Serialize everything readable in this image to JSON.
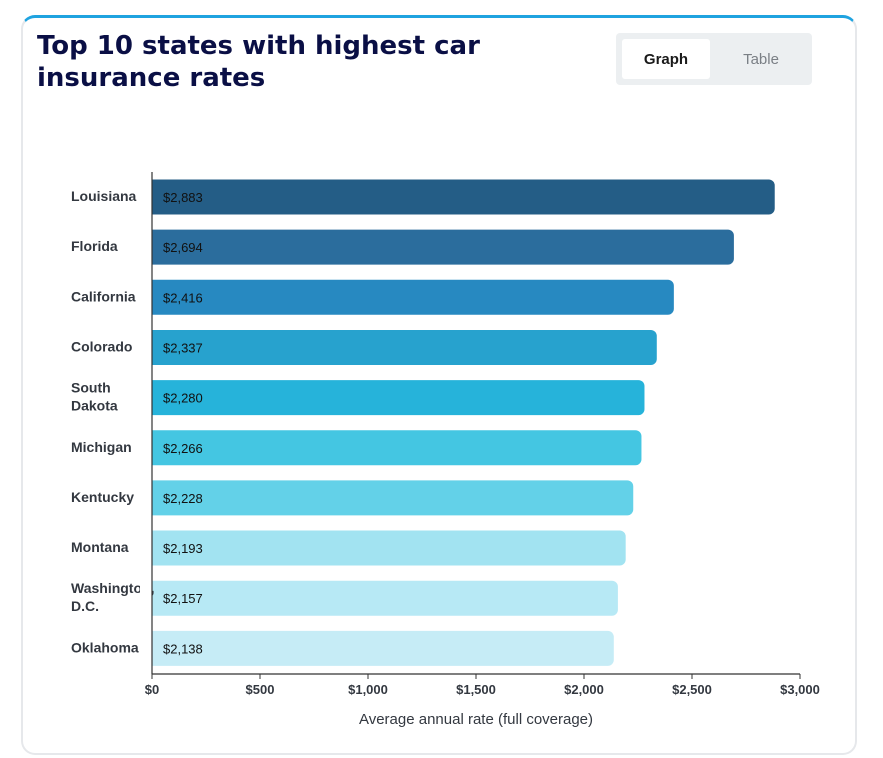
{
  "header": {
    "title": "Top 10 states with highest car insurance rates"
  },
  "view_toggle": {
    "graph_label": "Graph",
    "table_label": "Table",
    "selected": "Graph"
  },
  "colors": {
    "accent_border": "#1fa3e0",
    "title": "#0a0f45"
  },
  "chart_data": {
    "type": "bar",
    "orientation": "horizontal",
    "title": "Top 10 states with highest car insurance rates",
    "categories": [
      [
        "Louisiana"
      ],
      [
        "Florida"
      ],
      [
        "California"
      ],
      [
        "Colorado"
      ],
      [
        "South",
        "Dakota"
      ],
      [
        "Michigan"
      ],
      [
        "Kentucky"
      ],
      [
        "Montana"
      ],
      [
        "Washington,",
        "D.C."
      ],
      [
        "Oklahoma"
      ]
    ],
    "values": [
      2883,
      2694,
      2416,
      2337,
      2280,
      2266,
      2228,
      2193,
      2157,
      2138
    ],
    "value_labels": [
      "$2,883",
      "$2,694",
      "$2,416",
      "$2,337",
      "$2,280",
      "$2,266",
      "$2,228",
      "$2,193",
      "$2,157",
      "$2,138"
    ],
    "bar_colors": [
      "#245d86",
      "#2b6d9d",
      "#2789c1",
      "#27a2ce",
      "#26b3da",
      "#44c6e2",
      "#63d1e8",
      "#a2e3f1",
      "#b7e9f5",
      "#c6ecf6"
    ],
    "xlabel": "Average annual rate (full coverage)",
    "ylabel": "",
    "xlim": [
      0,
      3000
    ],
    "xticks": [
      0,
      500,
      1000,
      1500,
      2000,
      2500,
      3000
    ],
    "xtick_labels": [
      "$0",
      "$500",
      "$1,000",
      "$1,500",
      "$2,000",
      "$2,500",
      "$3,000"
    ],
    "grid": false,
    "legend": "none"
  }
}
